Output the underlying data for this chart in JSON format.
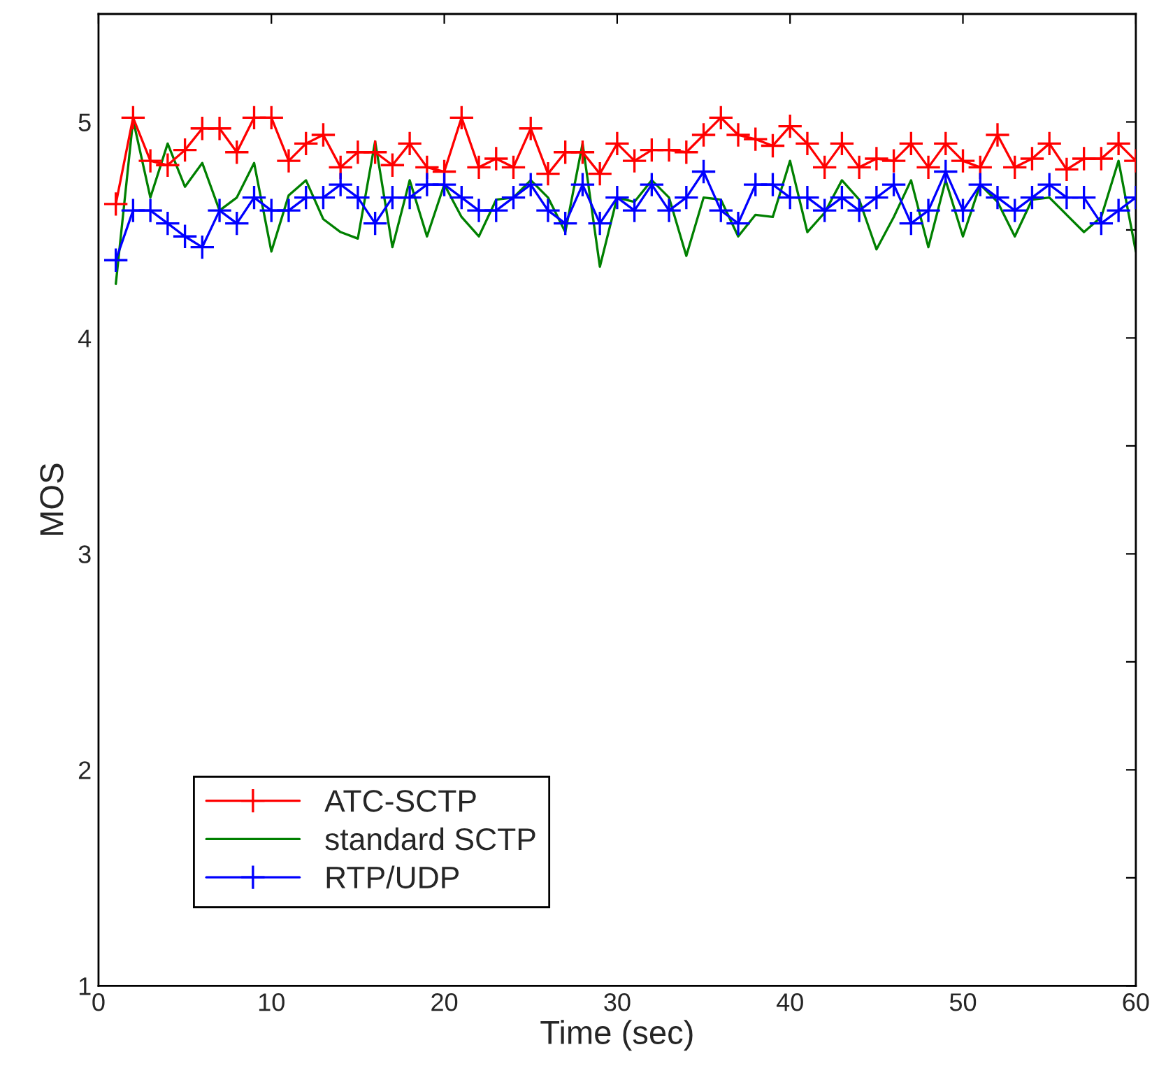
{
  "chart_data": {
    "type": "line",
    "xlabel": "Time (sec)",
    "ylabel": "MOS",
    "x": [
      1,
      2,
      3,
      4,
      5,
      6,
      7,
      8,
      9,
      10,
      11,
      12,
      13,
      14,
      15,
      16,
      17,
      18,
      19,
      20,
      21,
      22,
      23,
      24,
      25,
      26,
      27,
      28,
      29,
      30,
      31,
      32,
      33,
      34,
      35,
      36,
      37,
      38,
      39,
      40,
      41,
      42,
      43,
      44,
      45,
      46,
      47,
      48,
      49,
      50,
      51,
      52,
      53,
      54,
      55,
      56,
      57,
      58,
      59,
      60
    ],
    "series": [
      {
        "name": "ATC-SCTP",
        "color": "#ff0000",
        "marker": "cross",
        "values": [
          4.62,
          5.02,
          4.82,
          4.8,
          4.87,
          4.97,
          4.97,
          4.86,
          5.02,
          5.02,
          4.82,
          4.9,
          4.94,
          4.79,
          4.86,
          4.86,
          4.8,
          4.9,
          4.79,
          4.77,
          5.02,
          4.79,
          4.83,
          4.79,
          4.97,
          4.76,
          4.86,
          4.86,
          4.76,
          4.9,
          4.82,
          4.87,
          4.87,
          4.86,
          4.94,
          5.02,
          4.94,
          4.92,
          4.89,
          4.98,
          4.9,
          4.79,
          4.9,
          4.79,
          4.83,
          4.82,
          4.9,
          4.79,
          4.9,
          4.82,
          4.79,
          4.94,
          4.79,
          4.83,
          4.9,
          4.78,
          4.83,
          4.83,
          4.9,
          4.82
        ]
      },
      {
        "name": "standard SCTP",
        "color": "#008000",
        "marker": "none",
        "values": [
          4.25,
          5.01,
          4.65,
          4.9,
          4.7,
          4.81,
          4.59,
          4.65,
          4.81,
          4.4,
          4.66,
          4.73,
          4.55,
          4.49,
          4.46,
          4.91,
          4.42,
          4.73,
          4.47,
          4.71,
          4.56,
          4.47,
          4.64,
          4.65,
          4.73,
          4.65,
          4.49,
          4.9,
          4.33,
          4.65,
          4.63,
          4.73,
          4.65,
          4.38,
          4.65,
          4.64,
          4.47,
          4.57,
          4.56,
          4.82,
          4.49,
          4.58,
          4.73,
          4.64,
          4.41,
          4.56,
          4.73,
          4.42,
          4.73,
          4.47,
          4.71,
          4.63,
          4.47,
          4.64,
          4.65,
          4.57,
          4.49,
          4.56,
          4.82,
          4.4
        ]
      },
      {
        "name": "RTP/UDP",
        "color": "#0000ff",
        "marker": "cross",
        "values": [
          4.36,
          4.59,
          4.59,
          4.53,
          4.47,
          4.42,
          4.59,
          4.53,
          4.65,
          4.59,
          4.59,
          4.65,
          4.65,
          4.71,
          4.65,
          4.53,
          4.65,
          4.65,
          4.71,
          4.71,
          4.65,
          4.59,
          4.59,
          4.65,
          4.71,
          4.59,
          4.53,
          4.71,
          4.53,
          4.65,
          4.59,
          4.71,
          4.59,
          4.65,
          4.77,
          4.59,
          4.53,
          4.71,
          4.71,
          4.65,
          4.65,
          4.59,
          4.65,
          4.59,
          4.65,
          4.71,
          4.53,
          4.59,
          4.77,
          4.59,
          4.71,
          4.65,
          4.59,
          4.65,
          4.71,
          4.65,
          4.65,
          4.53,
          4.59,
          4.65
        ]
      }
    ],
    "xlim": [
      0,
      60
    ],
    "xticks": [
      0,
      10,
      20,
      30,
      40,
      50,
      60
    ],
    "ylim": [
      1,
      5.5
    ],
    "yticks": [
      1,
      {
        "value": 1.5,
        "label": null
      },
      2,
      {
        "value": 2.5,
        "label": null
      },
      3,
      {
        "value": 3.5,
        "label": null
      },
      4,
      {
        "value": 4.5,
        "label": null
      },
      5
    ],
    "grid": false,
    "legend": "bottom left",
    "line_style": "solid"
  }
}
